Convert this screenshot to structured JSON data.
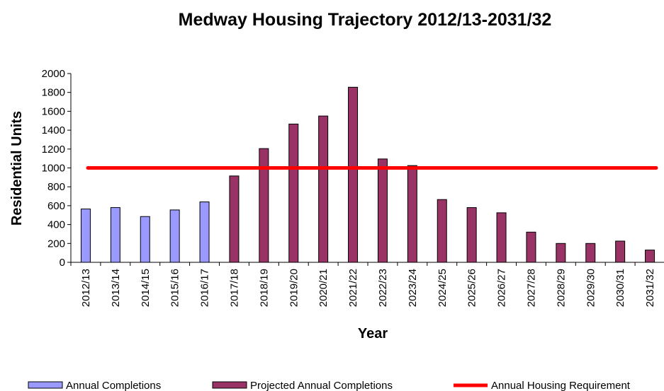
{
  "chart_data": {
    "type": "bar",
    "title": "Medway Housing Trajectory 2012/13-2031/32",
    "xlabel": "Year",
    "ylabel": "Residential Units",
    "ylim": [
      0,
      2000
    ],
    "yticks": [
      0,
      200,
      400,
      600,
      800,
      1000,
      1200,
      1400,
      1600,
      1800,
      2000
    ],
    "grid": false,
    "legend_position": "bottom",
    "categories": [
      "2012/13",
      "2013/14",
      "2014/15",
      "2015/16",
      "2016/17",
      "2017/18",
      "2018/19",
      "2019/20",
      "2020/21",
      "2021/22",
      "2022/23",
      "2023/24",
      "2024/25",
      "2025/26",
      "2026/27",
      "2027/28",
      "2028/29",
      "2029/30",
      "2030/31",
      "2031/32"
    ],
    "series": [
      {
        "name": "Annual Completions",
        "kind": "bar",
        "color": "#9999ff",
        "values": [
          565,
          580,
          485,
          555,
          640,
          null,
          null,
          null,
          null,
          null,
          null,
          null,
          null,
          null,
          null,
          null,
          null,
          null,
          null,
          null
        ]
      },
      {
        "name": "Projected Annual Completions",
        "kind": "bar",
        "color": "#993366",
        "values": [
          null,
          null,
          null,
          null,
          null,
          915,
          1205,
          1465,
          1550,
          1855,
          1095,
          1025,
          665,
          580,
          525,
          320,
          200,
          200,
          225,
          130
        ]
      },
      {
        "name": "Annual Housing Requirement",
        "kind": "line",
        "color": "#ff0000",
        "values": [
          1000,
          1000,
          1000,
          1000,
          1000,
          1000,
          1000,
          1000,
          1000,
          1000,
          1000,
          1000,
          1000,
          1000,
          1000,
          1000,
          1000,
          1000,
          1000,
          1000
        ]
      }
    ]
  }
}
